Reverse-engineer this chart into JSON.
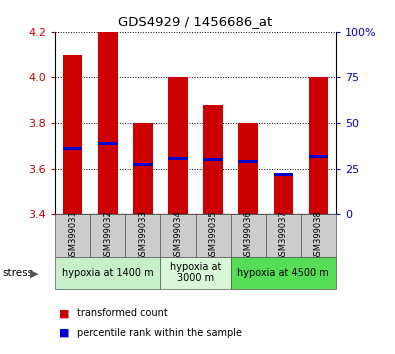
{
  "title": "GDS4929 / 1456686_at",
  "samples": [
    "GSM399031",
    "GSM399032",
    "GSM399033",
    "GSM399034",
    "GSM399035",
    "GSM399036",
    "GSM399037",
    "GSM399038"
  ],
  "bar_values": [
    4.1,
    4.2,
    3.8,
    4.0,
    3.88,
    3.8,
    3.57,
    4.0
  ],
  "bar_bottom": 3.4,
  "blue_marker_values": [
    3.69,
    3.71,
    3.62,
    3.645,
    3.64,
    3.63,
    3.575,
    3.655
  ],
  "ylim": [
    3.4,
    4.2
  ],
  "yticks_left": [
    3.4,
    3.6,
    3.8,
    4.0,
    4.2
  ],
  "bar_color": "#cc0000",
  "blue_color": "#0000cc",
  "label_color_left": "#cc0000",
  "label_color_right": "#0000cc",
  "groups": [
    {
      "label": "hypoxia at 1400 m",
      "start": 0,
      "end": 3,
      "color": "#c8f0c8"
    },
    {
      "label": "hypoxia at\n3000 m",
      "start": 3,
      "end": 5,
      "color": "#d8f8d8"
    },
    {
      "label": "hypoxia at 4500 m",
      "start": 5,
      "end": 8,
      "color": "#55dd55"
    }
  ],
  "legend_items": [
    {
      "label": "transformed count",
      "color": "#cc0000"
    },
    {
      "label": "percentile rank within the sample",
      "color": "#0000cc"
    }
  ],
  "stress_label": "stress",
  "bar_width": 0.55,
  "sample_bg_color": "#cccccc"
}
